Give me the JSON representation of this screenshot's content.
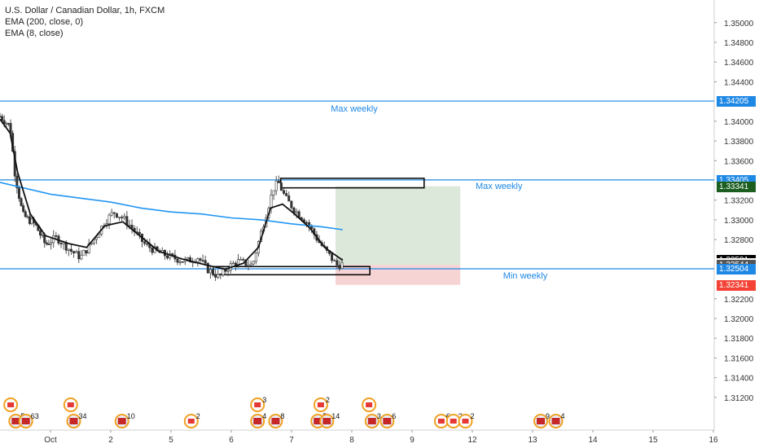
{
  "header": {
    "symbol": "U.S. Dollar / Canadian Dollar, 1h, FXCM",
    "indicators": [
      "EMA (200, close, 0)",
      "EMA (8, close)"
    ]
  },
  "chart_data": {
    "type": "candlestick",
    "ylim": [
      1.3105,
      1.3518
    ],
    "y_ticks": [
      "1.35000",
      "1.34800",
      "1.34600",
      "1.34400",
      "1.34000",
      "1.33800",
      "1.33600",
      "1.33200",
      "1.33000",
      "1.32800",
      "1.32200",
      "1.32000",
      "1.31800",
      "1.31600",
      "1.31400",
      "1.31200"
    ],
    "x_ticks": [
      {
        "label": "Oct",
        "day": 1
      },
      {
        "label": "2",
        "day": 2
      },
      {
        "label": "5",
        "day": 3
      },
      {
        "label": "6",
        "day": 4
      },
      {
        "label": "7",
        "day": 5
      },
      {
        "label": "8",
        "day": 6
      },
      {
        "label": "9",
        "day": 7
      },
      {
        "label": "12",
        "day": 8
      },
      {
        "label": "13",
        "day": 9
      },
      {
        "label": "14",
        "day": 10
      },
      {
        "label": "15",
        "day": 11
      },
      {
        "label": "16",
        "day": 12
      }
    ],
    "xlim_days": [
      0.0,
      12.0
    ],
    "price_series_anchor": [
      [
        0.0,
        1.3405
      ],
      [
        0.2,
        1.3395
      ],
      [
        0.3,
        1.3345
      ],
      [
        0.45,
        1.3305
      ],
      [
        0.7,
        1.3295
      ],
      [
        0.9,
        1.3275
      ],
      [
        1.1,
        1.3282
      ],
      [
        1.35,
        1.3268
      ],
      [
        1.5,
        1.3262
      ],
      [
        1.7,
        1.3278
      ],
      [
        1.9,
        1.3298
      ],
      [
        2.05,
        1.3308
      ],
      [
        2.2,
        1.3302
      ],
      [
        2.35,
        1.3292
      ],
      [
        2.55,
        1.3276
      ],
      [
        2.75,
        1.3268
      ],
      [
        3.0,
        1.3262
      ],
      [
        3.25,
        1.3258
      ],
      [
        3.45,
        1.3262
      ],
      [
        3.6,
        1.325
      ],
      [
        3.8,
        1.3242
      ],
      [
        3.95,
        1.3252
      ],
      [
        4.1,
        1.3258
      ],
      [
        4.35,
        1.3254
      ],
      [
        4.55,
        1.33
      ],
      [
        4.7,
        1.3332
      ],
      [
        4.78,
        1.3338
      ],
      [
        4.9,
        1.3322
      ],
      [
        5.05,
        1.331
      ],
      [
        5.25,
        1.3298
      ],
      [
        5.45,
        1.3278
      ],
      [
        5.6,
        1.3266
      ],
      [
        5.75,
        1.3254
      ],
      [
        5.85,
        1.3255
      ]
    ],
    "ema8_anchor": [
      [
        0.0,
        1.3402
      ],
      [
        0.2,
        1.3388
      ],
      [
        0.35,
        1.3348
      ],
      [
        0.6,
        1.3306
      ],
      [
        0.9,
        1.3284
      ],
      [
        1.3,
        1.3276
      ],
      [
        1.6,
        1.3272
      ],
      [
        1.9,
        1.3294
      ],
      [
        2.2,
        1.3298
      ],
      [
        2.5,
        1.3283
      ],
      [
        2.8,
        1.3268
      ],
      [
        3.2,
        1.326
      ],
      [
        3.6,
        1.3254
      ],
      [
        3.9,
        1.325
      ],
      [
        4.2,
        1.3256
      ],
      [
        4.45,
        1.3272
      ],
      [
        4.65,
        1.3312
      ],
      [
        4.85,
        1.3316
      ],
      [
        5.05,
        1.3306
      ],
      [
        5.3,
        1.3292
      ],
      [
        5.55,
        1.3272
      ],
      [
        5.85,
        1.3259
      ]
    ],
    "ema200_anchor": [
      [
        0.0,
        1.3338
      ],
      [
        0.5,
        1.3332
      ],
      [
        1.0,
        1.3326
      ],
      [
        1.5,
        1.3322
      ],
      [
        2.0,
        1.3318
      ],
      [
        2.5,
        1.3312
      ],
      [
        3.0,
        1.3308
      ],
      [
        3.5,
        1.3306
      ],
      [
        4.0,
        1.3302
      ],
      [
        4.5,
        1.33
      ],
      [
        5.0,
        1.3296
      ],
      [
        5.5,
        1.3293
      ],
      [
        5.85,
        1.329
      ]
    ],
    "horizontal_lines": [
      {
        "label": "Max weekly",
        "price": 1.34205,
        "color": "#1e88e5"
      },
      {
        "label": "Max weekly",
        "price": 1.33405,
        "color": "#1e88e5"
      },
      {
        "label": "Min weekly",
        "price": 1.32504,
        "color": "#1e88e5"
      }
    ],
    "zones": [
      {
        "price_top": 1.33405,
        "price_bottom": 1.33341,
        "day_start": 4.82,
        "day_end": 7.2
      },
      {
        "price_top": 1.3251,
        "price_bottom": 1.3246,
        "day_start": 3.7,
        "day_end": 6.3
      }
    ],
    "position": {
      "entry": 1.32544,
      "target": 1.33341,
      "stop": 1.32341,
      "day_start": 5.73,
      "day_end": 7.8,
      "profit_color": "#dce9da",
      "loss_color": "#f7d4d4"
    },
    "price_labels": [
      {
        "text": "1.34205",
        "price": 1.34205,
        "bg": "#1e88e5"
      },
      {
        "text": "1.33405",
        "price": 1.33405,
        "bg": "#1e88e5"
      },
      {
        "text": "1.33341",
        "price": 1.33341,
        "bg": "#1b5e20"
      },
      {
        "text": "1.32591",
        "price": 1.32591,
        "bg": "#000000"
      },
      {
        "text": "41:37",
        "price": 1.32565,
        "bg": "#ffffff",
        "fg": "#222222"
      },
      {
        "text": "1.32544",
        "price": 1.32544,
        "bg": "#555555"
      },
      {
        "text": "1.32504",
        "price": 1.32504,
        "bg": "#1e88e5"
      },
      {
        "text": "1.32341",
        "price": 1.32341,
        "bg": "#f44336"
      }
    ],
    "events": [
      {
        "day": 0.05,
        "row": 1,
        "kind": "ca",
        "text": ""
      },
      {
        "day": 0.15,
        "row": 2,
        "kind": "us",
        "text": "5"
      },
      {
        "day": 0.35,
        "row": 2,
        "kind": "us",
        "text": "63"
      },
      {
        "day": 1.2,
        "row": 1,
        "kind": "ca",
        "text": ""
      },
      {
        "day": 1.25,
        "row": 2,
        "kind": "us",
        "text": "34"
      },
      {
        "day": 2.05,
        "row": 2,
        "kind": "us",
        "text": "10"
      },
      {
        "day": 3.2,
        "row": 2,
        "kind": "ca",
        "text": "2"
      },
      {
        "day": 4.3,
        "row": 1,
        "kind": "ca",
        "text": "3"
      },
      {
        "day": 4.3,
        "row": 2,
        "kind": "us",
        "text": "4"
      },
      {
        "day": 4.6,
        "row": 2,
        "kind": "us",
        "text": "8"
      },
      {
        "day": 5.35,
        "row": 1,
        "kind": "ca",
        "text": "2"
      },
      {
        "day": 5.3,
        "row": 2,
        "kind": "us",
        "text": "5"
      },
      {
        "day": 5.45,
        "row": 2,
        "kind": "us",
        "text": "14"
      },
      {
        "day": 6.15,
        "row": 1,
        "kind": "ca",
        "text": ""
      },
      {
        "day": 6.2,
        "row": 2,
        "kind": "us",
        "text": "3"
      },
      {
        "day": 6.45,
        "row": 2,
        "kind": "us",
        "text": "6"
      },
      {
        "day": 7.35,
        "row": 2,
        "kind": "ca",
        "text": "6"
      },
      {
        "day": 7.55,
        "row": 2,
        "kind": "ca",
        "text": "?"
      },
      {
        "day": 7.75,
        "row": 2,
        "kind": "ca",
        "text": "2"
      },
      {
        "day": 9.0,
        "row": 2,
        "kind": "us",
        "text": "9"
      },
      {
        "day": 9.25,
        "row": 2,
        "kind": "us",
        "text": "4"
      }
    ]
  }
}
